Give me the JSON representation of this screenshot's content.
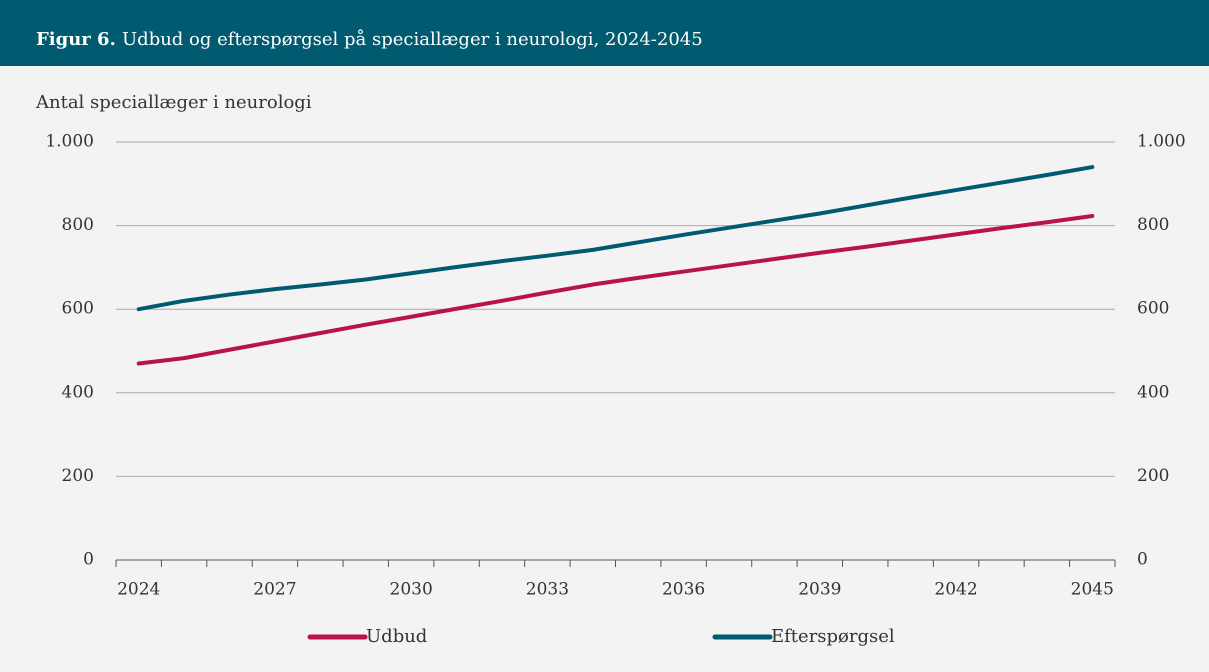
{
  "chart_data": {
    "type": "line",
    "figure_label": "Figur 6.",
    "title": "Udbud og efterspørgsel på speciallæger i neurologi, 2024-2045",
    "ylabel": "Antal speciallæger i neurologi",
    "categories": [
      "2024",
      null,
      null,
      "2027",
      null,
      null,
      "2030",
      null,
      null,
      "2033",
      null,
      null,
      "2036",
      null,
      null,
      "2039",
      null,
      null,
      "2042",
      null,
      null,
      "2045"
    ],
    "series": [
      {
        "name": "Udbud",
        "color": "#b8134b",
        "values": [
          470,
          483,
          503,
          523,
          543,
          563,
          582,
          601,
          620,
          640,
          659,
          675,
          690,
          705,
          720,
          735,
          749,
          764,
          779,
          794,
          808,
          823
        ]
      },
      {
        "name": "Efterspørgsel",
        "color": "#005a70",
        "values": [
          600,
          620,
          635,
          648,
          659,
          671,
          686,
          701,
          715,
          728,
          742,
          760,
          778,
          795,
          812,
          829,
          848,
          867,
          885,
          903,
          921,
          940
        ]
      }
    ],
    "ylim": [
      0,
      1000
    ],
    "yticks": [
      0,
      200,
      400,
      600,
      800,
      {
        "value": 1000,
        "label": "1.000"
      }
    ],
    "y2lim": [
      0,
      1000
    ],
    "y2ticks": [
      0,
      200,
      400,
      600,
      800,
      {
        "value": 1000,
        "label": "1.000"
      }
    ],
    "grid": true,
    "legend": "bottom"
  }
}
